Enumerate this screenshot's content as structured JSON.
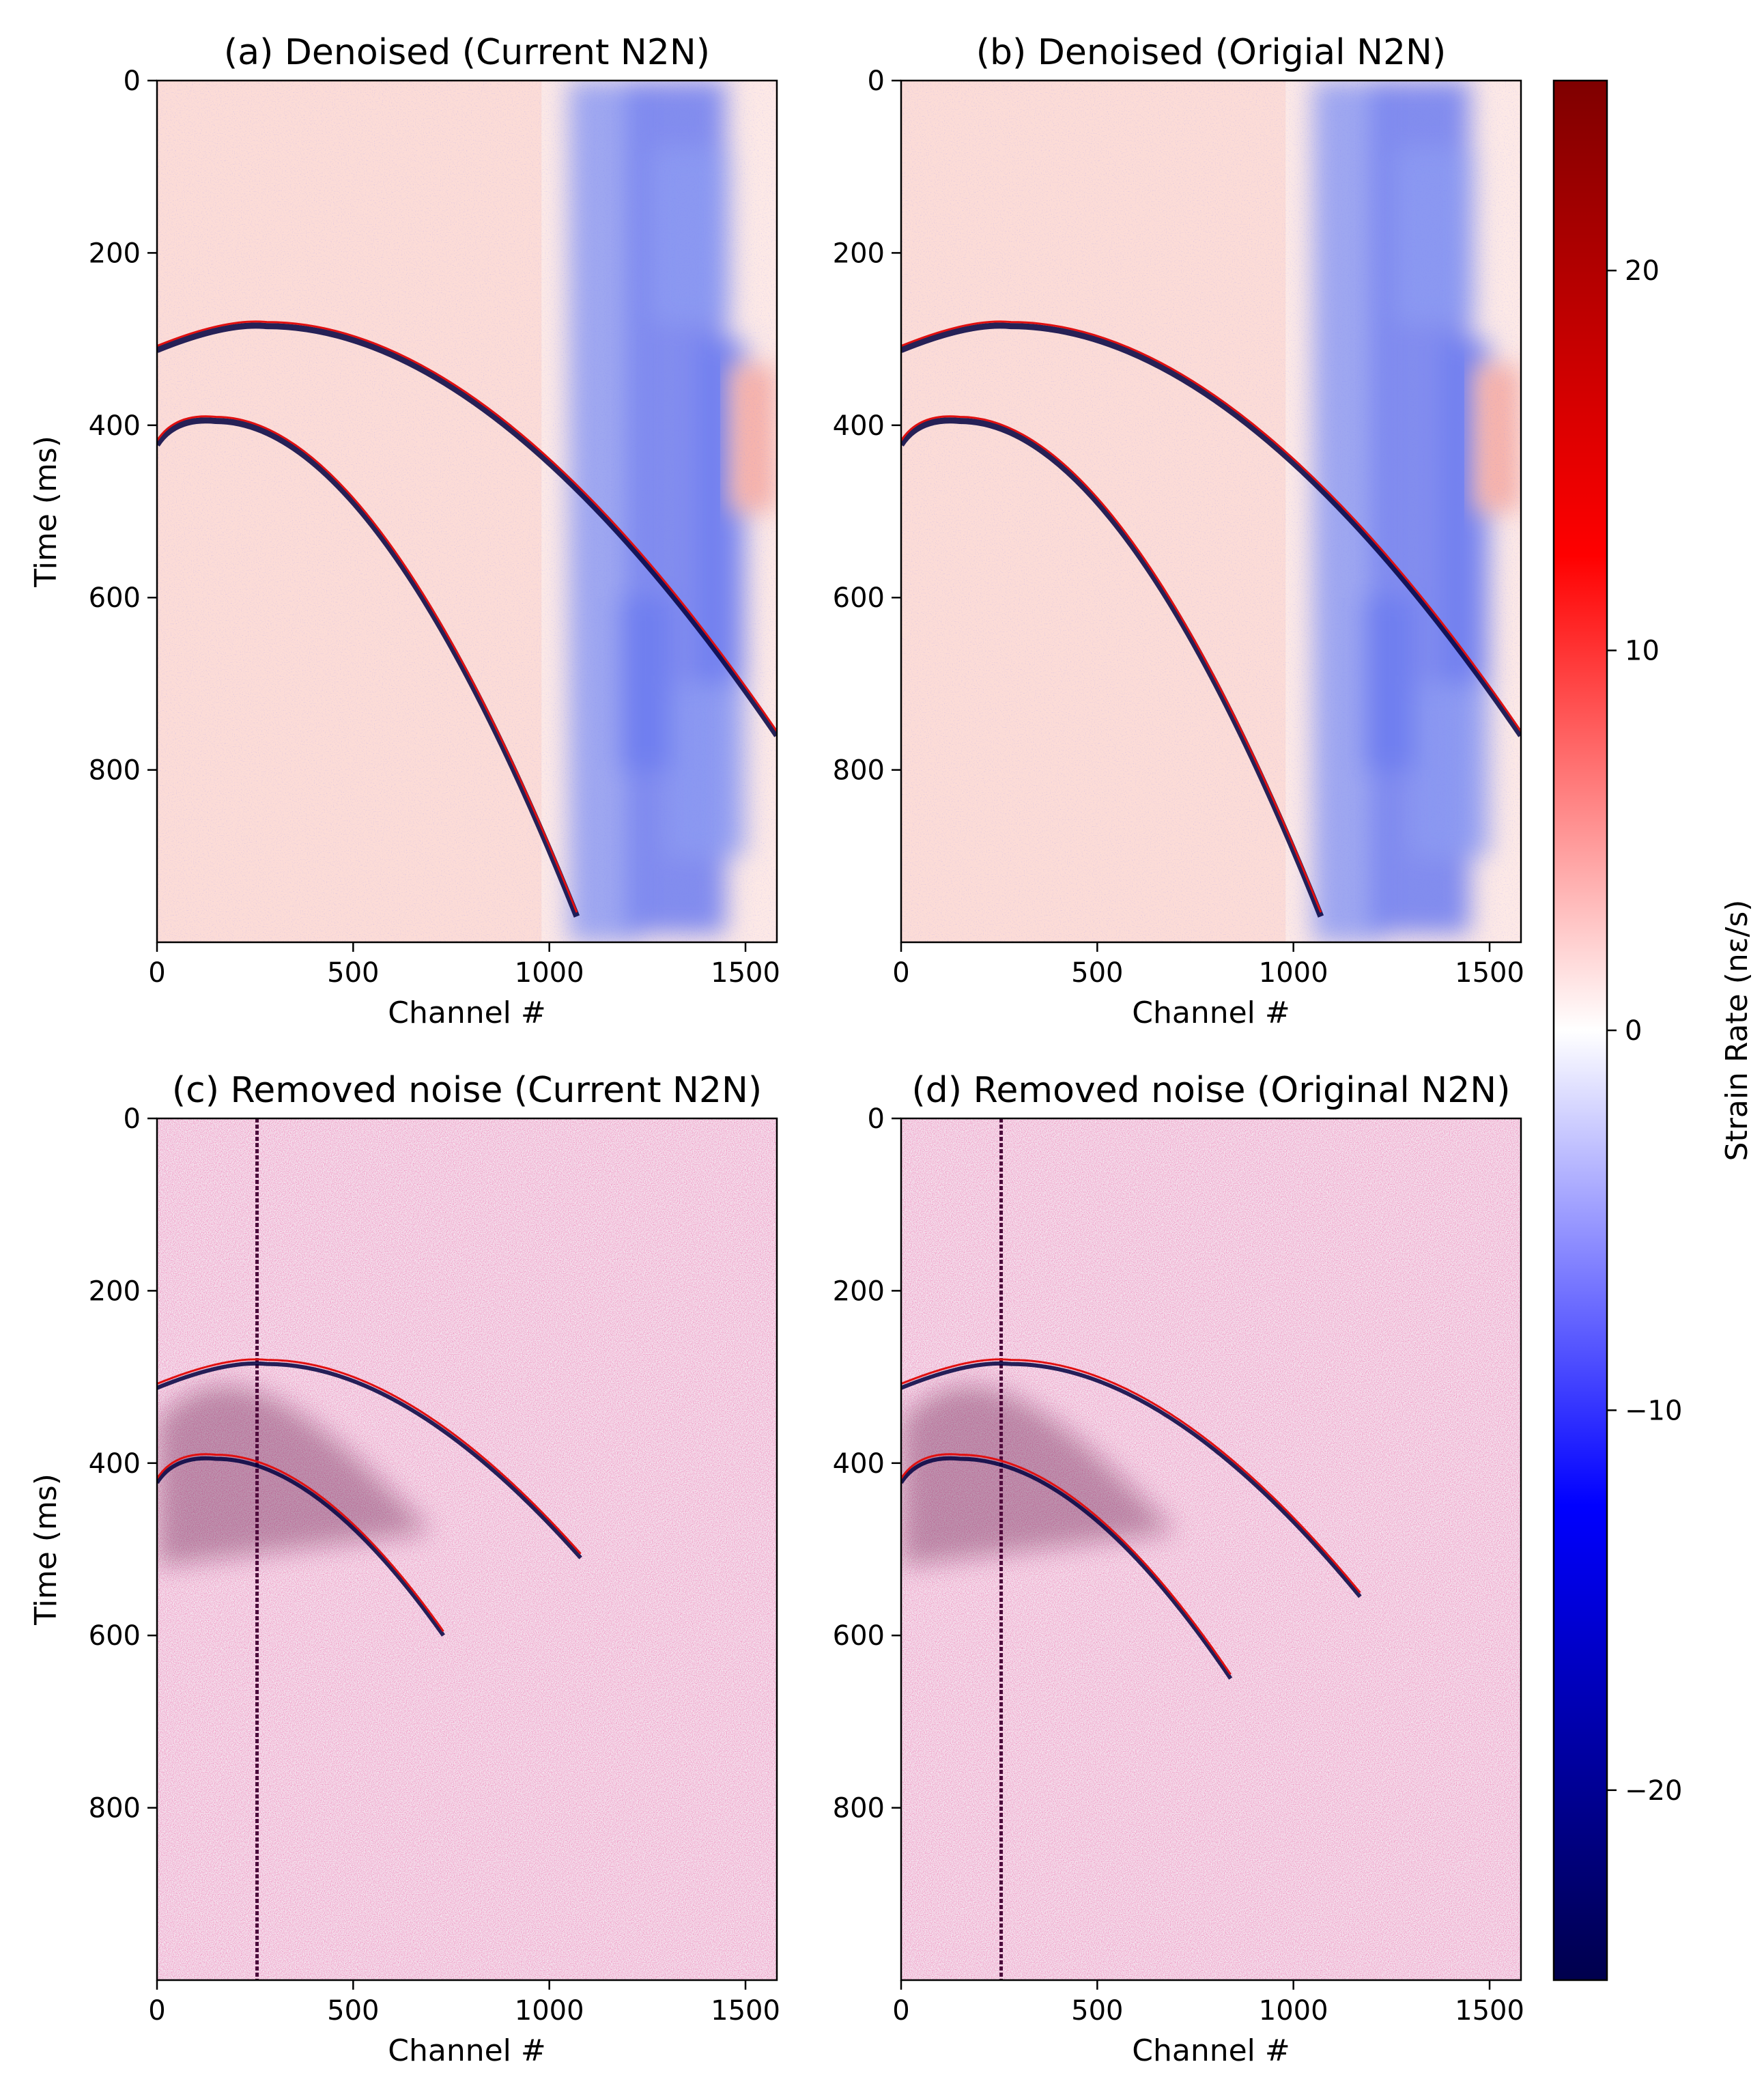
{
  "chart_data": [
    {
      "type": "heatmap",
      "panel": "a",
      "title": "(a) Denoised (Current N2N)",
      "xlabel": "Channel #",
      "ylabel": "Time (ms)",
      "xlim": [
        0,
        1580
      ],
      "ylim": [
        1000,
        0
      ],
      "xticks": [
        0,
        500,
        1000,
        1500
      ],
      "yticks": [
        0,
        200,
        400,
        600,
        800
      ],
      "xtick_labels": [
        "0",
        "500",
        "1000",
        "1500"
      ],
      "ytick_labels": [
        "0",
        "200",
        "400",
        "600",
        "800"
      ],
      "content": "denoised",
      "arrivals": [
        {
          "apex_channel": 280,
          "apex_time_ms": 285,
          "end_channel": 1580,
          "end_time_ms": 760
        },
        {
          "apex_channel": 150,
          "apex_time_ms": 395,
          "end_channel": 1070,
          "end_time_ms": 970
        }
      ]
    },
    {
      "type": "heatmap",
      "panel": "b",
      "title": "(b) Denoised (Origial N2N)",
      "xlabel": "Channel #",
      "ylabel": "",
      "xlim": [
        0,
        1580
      ],
      "ylim": [
        1000,
        0
      ],
      "xticks": [
        0,
        500,
        1000,
        1500
      ],
      "yticks": [
        0,
        200,
        400,
        600,
        800
      ],
      "xtick_labels": [
        "0",
        "500",
        "1000",
        "1500"
      ],
      "ytick_labels": [
        "0",
        "200",
        "400",
        "600",
        "800"
      ],
      "content": "denoised",
      "arrivals": [
        {
          "apex_channel": 280,
          "apex_time_ms": 285,
          "end_channel": 1580,
          "end_time_ms": 760
        },
        {
          "apex_channel": 150,
          "apex_time_ms": 395,
          "end_channel": 1070,
          "end_time_ms": 970
        }
      ]
    },
    {
      "type": "heatmap",
      "panel": "c",
      "title": "(c) Removed noise (Current N2N)",
      "xlabel": "Channel #",
      "ylabel": "Time (ms)",
      "xlim": [
        0,
        1580
      ],
      "ylim": [
        1000,
        0
      ],
      "xticks": [
        0,
        500,
        1000,
        1500
      ],
      "yticks": [
        0,
        200,
        400,
        600,
        800
      ],
      "xtick_labels": [
        "0",
        "500",
        "1000",
        "1500"
      ],
      "ytick_labels": [
        "0",
        "200",
        "400",
        "600",
        "800"
      ],
      "content": "removed-noise",
      "noisy_channel": 255,
      "arrivals": [
        {
          "apex_channel": 280,
          "apex_time_ms": 285,
          "end_channel": 1080,
          "end_time_ms": 510
        },
        {
          "apex_channel": 150,
          "apex_time_ms": 395,
          "end_channel": 730,
          "end_time_ms": 600
        }
      ]
    },
    {
      "type": "heatmap",
      "panel": "d",
      "title": "(d) Removed noise (Original N2N)",
      "xlabel": "Channel #",
      "ylabel": "",
      "xlim": [
        0,
        1580
      ],
      "ylim": [
        1000,
        0
      ],
      "xticks": [
        0,
        500,
        1000,
        1500
      ],
      "yticks": [
        0,
        200,
        400,
        600,
        800
      ],
      "xtick_labels": [
        "0",
        "500",
        "1000",
        "1500"
      ],
      "ytick_labels": [
        "0",
        "200",
        "400",
        "600",
        "800"
      ],
      "content": "removed-noise",
      "noisy_channel": 255,
      "arrivals": [
        {
          "apex_channel": 280,
          "apex_time_ms": 285,
          "end_channel": 1170,
          "end_time_ms": 555
        },
        {
          "apex_channel": 150,
          "apex_time_ms": 395,
          "end_channel": 840,
          "end_time_ms": 650
        }
      ]
    },
    {
      "type": "colorbar",
      "colormap": "seismic",
      "label": "Strain Rate (nε/s)",
      "vmin": -25,
      "vmax": 25,
      "ticks": [
        20,
        10,
        0,
        -10,
        -20
      ],
      "tick_labels": [
        "20",
        "10",
        "0",
        "−10",
        "−20"
      ],
      "colors": [
        "#00004c",
        "#0000ff",
        "#ffffff",
        "#ff0000",
        "#7f0000"
      ]
    }
  ]
}
